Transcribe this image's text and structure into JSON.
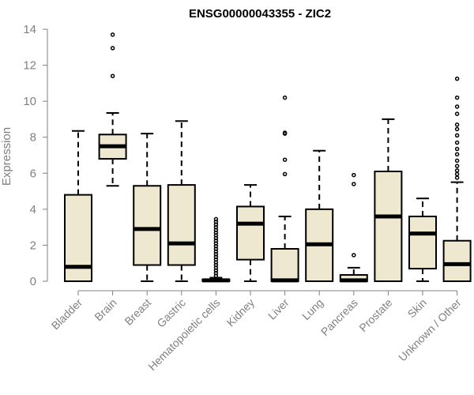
{
  "chart_data": {
    "type": "boxplot",
    "title": "ENSG00000043355 - ZIC2",
    "xlabel": "",
    "ylabel": "Expression",
    "ylim": [
      0,
      14
    ],
    "yticks": [
      0,
      2,
      4,
      6,
      8,
      10,
      12,
      14
    ],
    "grid": false,
    "box_fill": "#efe8d0",
    "box_stroke": "#000000",
    "axis_color": "#808080",
    "categories": [
      "Bladder",
      "Brain",
      "Breast",
      "Gastric",
      "Hematopoietic cells",
      "Kidney",
      "Liver",
      "Lung",
      "Pancreas",
      "Prostate",
      "Skin",
      "Unknown / Other"
    ],
    "boxes": [
      {
        "name": "Bladder",
        "whisker_low": 0,
        "q1": 0,
        "median": 0.8,
        "q3": 4.8,
        "whisker_high": 8.35,
        "outliers": []
      },
      {
        "name": "Brain",
        "whisker_low": 5.3,
        "q1": 6.8,
        "median": 7.5,
        "q3": 8.15,
        "whisker_high": 9.35,
        "outliers": [
          11.4,
          12.95,
          13.7
        ]
      },
      {
        "name": "Breast",
        "whisker_low": 0,
        "q1": 0.9,
        "median": 2.9,
        "q3": 5.3,
        "whisker_high": 8.2,
        "outliers": []
      },
      {
        "name": "Gastric",
        "whisker_low": 0,
        "q1": 0.9,
        "median": 2.1,
        "q3": 5.35,
        "whisker_high": 8.9,
        "outliers": []
      },
      {
        "name": "Hematopoietic cells",
        "whisker_low": 0,
        "q1": 0,
        "median": 0.05,
        "q3": 0.1,
        "whisker_high": 0.2,
        "outliers": [
          0.3,
          0.45,
          0.6,
          0.75,
          0.9,
          1.05,
          1.2,
          1.35,
          1.5,
          1.65,
          1.8,
          1.95,
          2.1,
          2.25,
          2.4,
          2.55,
          2.7,
          2.85,
          3.0,
          3.15,
          3.3,
          3.45
        ]
      },
      {
        "name": "Kidney",
        "whisker_low": 0,
        "q1": 1.2,
        "median": 3.2,
        "q3": 4.15,
        "whisker_high": 5.35,
        "outliers": []
      },
      {
        "name": "Liver",
        "whisker_low": 0,
        "q1": 0,
        "median": 0.05,
        "q3": 1.8,
        "whisker_high": 3.6,
        "outliers": [
          5.95,
          6.75,
          8.2,
          8.25,
          10.2
        ]
      },
      {
        "name": "Lung",
        "whisker_low": 0,
        "q1": 0,
        "median": 2.05,
        "q3": 4.0,
        "whisker_high": 7.25,
        "outliers": []
      },
      {
        "name": "Pancreas",
        "whisker_low": 0,
        "q1": 0,
        "median": 0.05,
        "q3": 0.35,
        "whisker_high": 0.75,
        "outliers": [
          1.45,
          5.4,
          5.9
        ]
      },
      {
        "name": "Prostate",
        "whisker_low": 0,
        "q1": 0,
        "median": 3.6,
        "q3": 6.1,
        "whisker_high": 9.0,
        "outliers": []
      },
      {
        "name": "Skin",
        "whisker_low": 0,
        "q1": 0.7,
        "median": 2.65,
        "q3": 3.6,
        "whisker_high": 4.6,
        "outliers": []
      },
      {
        "name": "Unknown / Other",
        "whisker_low": 0,
        "q1": 0,
        "median": 0.95,
        "q3": 2.25,
        "whisker_high": 5.5,
        "outliers": [
          5.75,
          5.95,
          6.15,
          6.4,
          6.7,
          7.05,
          7.35,
          7.7,
          8.1,
          8.45,
          8.7,
          9.3,
          9.7,
          10.2,
          11.25
        ]
      }
    ]
  }
}
